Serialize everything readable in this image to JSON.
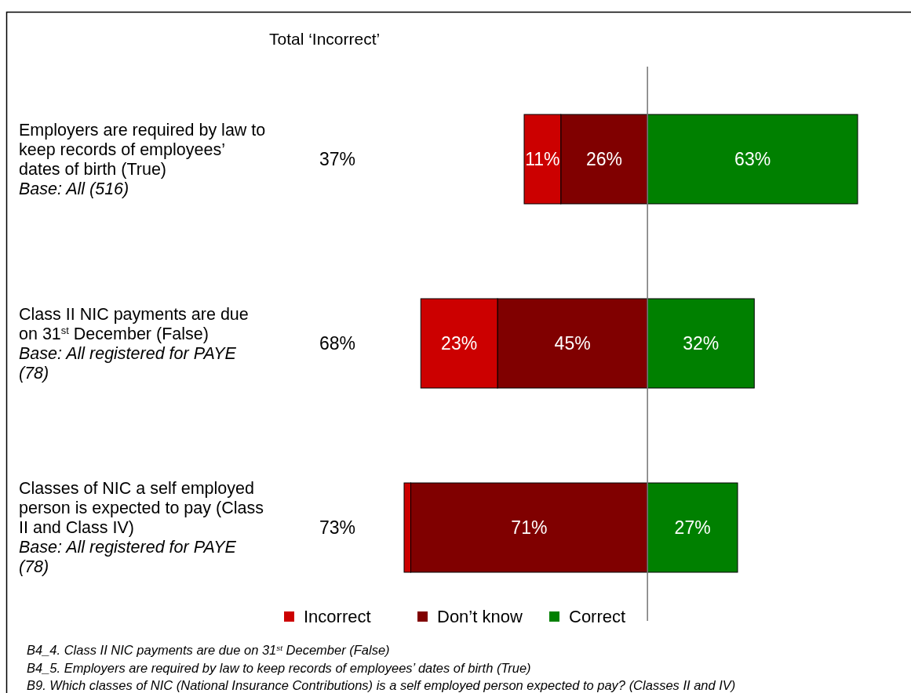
{
  "chart_data": [
    {
      "type": "bar",
      "orientation": "horizontal",
      "stacked": true,
      "xlim": [
        73,
        0
      ],
      "categories": [
        "Employers are required by law to keep records of employees’ dates of birth (True)\nBase: All (516)",
        "Class II NIC payments are due on 31$^{st}$ December (False)\nBase: All registered for PAYE (78)",
        "Classes of NIC a self employed person is expected to pay (Class II and Class IV)\nBase: All registered for PAYE (78)"
      ],
      "series": [
        {
          "name": "Don’t know",
          "color": "#800000",
          "values": [
            26,
            45,
            71
          ],
          "value_labels": [
            "26%",
            "45%",
            "71%"
          ]
        },
        {
          "name": "Incorrect",
          "color": "#cc0000",
          "values": [
            11,
            23,
            2
          ],
          "value_labels": [
            "11%",
            "23%",
            null
          ]
        }
      ],
      "legend": "bottom",
      "annotations": [
        "Total ‘Incorrect’",
        "37%",
        "68%",
        "73%",
        "B4_4. Class II NIC payments are due on 31$^{st}$ December  (False)",
        "B4_5. Employers are required by law to keep records of employees’ dates of birth (True)",
        "B9. Which classes of NIC (National Insurance Contributions) is a self employed person expected to pay? (Classes II and IV)"
      ]
    },
    {
      "type": "bar",
      "orientation": "horizontal",
      "stacked": true,
      "xlim": [
        0,
        63
      ],
      "categories": [
        null,
        null,
        null
      ],
      "series": [
        {
          "name": "Correct",
          "color": "#008000",
          "values": [
            63,
            32,
            27
          ],
          "value_labels": [
            "63%",
            "32%",
            "27%"
          ]
        }
      ],
      "legend": "bottom"
    }
  ]
}
